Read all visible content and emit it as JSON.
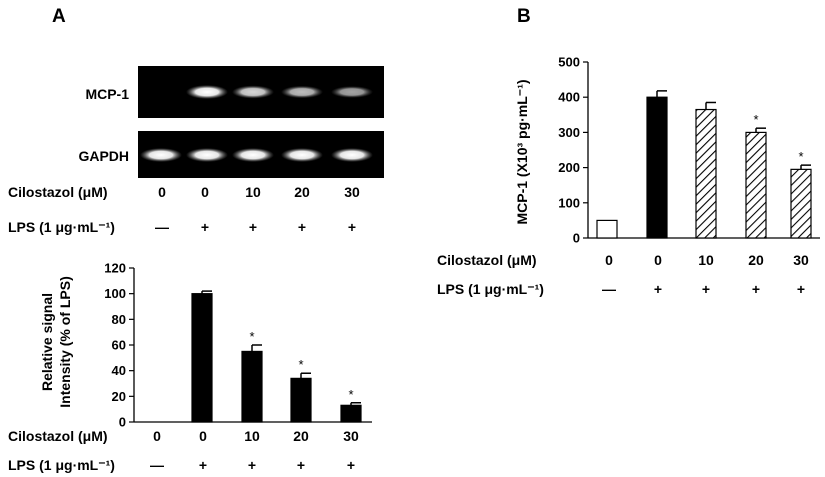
{
  "panels": {
    "a": "A",
    "b": "B"
  },
  "gel": {
    "rows": [
      "MCP-1",
      "GAPDH"
    ],
    "mcp1_intensity": [
      0.0,
      1.0,
      0.75,
      0.6,
      0.45
    ],
    "gapdh_intensity": [
      1.0,
      1.0,
      1.0,
      1.0,
      1.0
    ]
  },
  "conditions": {
    "cilostazol_label": "Cilostazol (μM)",
    "cilostazol": [
      "0",
      "0",
      "10",
      "20",
      "30"
    ],
    "lps_label": "LPS (1 μg·mL⁻¹)",
    "lps": [
      "—",
      "+",
      "+",
      "+",
      "+"
    ]
  },
  "chart_data": [
    {
      "type": "bar",
      "panel": "A",
      "categories": [
        "0/—",
        "0/+",
        "10/+",
        "20/+",
        "30/+"
      ],
      "values": [
        0,
        100,
        55,
        34,
        13
      ],
      "errors": [
        0,
        2,
        5,
        4,
        2
      ],
      "significance": [
        "",
        "",
        "*",
        "*",
        "*"
      ],
      "ylabel": "Relative signal Intensity (% of LPS)",
      "ylabel_lines": [
        "Relative signal",
        "Intensity (% of LPS)"
      ],
      "ylim": [
        0,
        120
      ],
      "yticks": [
        "0",
        "20",
        "40",
        "60",
        "80",
        "100",
        "120"
      ],
      "bar_fills": [
        "solid",
        "solid",
        "solid",
        "solid",
        "solid"
      ],
      "bar_color": "#000000"
    },
    {
      "type": "bar",
      "panel": "B",
      "categories": [
        "0/—",
        "0/+",
        "10/+",
        "20/+",
        "30/+"
      ],
      "values": [
        50,
        400,
        365,
        300,
        195
      ],
      "errors": [
        0,
        18,
        20,
        12,
        12
      ],
      "significance": [
        "",
        "",
        "",
        "*",
        "*"
      ],
      "ylabel": "MCP-1 (X10³ pg·mL⁻¹)",
      "ylim": [
        0,
        500
      ],
      "yticks": [
        "0",
        "100",
        "200",
        "300",
        "400",
        "500"
      ],
      "bar_fills": [
        "open",
        "solid",
        "hatched",
        "hatched",
        "hatched"
      ],
      "bar_color": "#000000"
    }
  ]
}
